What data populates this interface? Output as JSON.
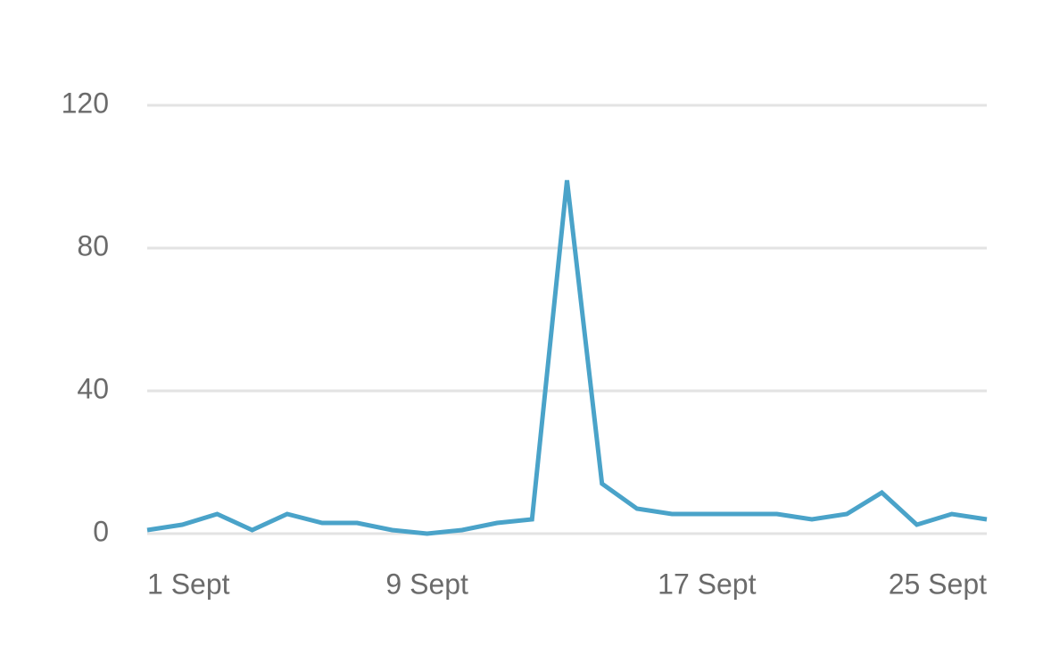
{
  "chart_data": {
    "type": "line",
    "categories": [
      "1 Sept",
      null,
      null,
      null,
      null,
      null,
      null,
      null,
      "9 Sept",
      null,
      null,
      null,
      null,
      null,
      null,
      null,
      "17 Sept",
      null,
      null,
      null,
      null,
      null,
      null,
      null,
      "25 Sept"
    ],
    "series": [
      {
        "color": "#4aa3c9",
        "values": [
          1,
          2.5,
          5.5,
          1,
          5.5,
          3,
          3,
          1,
          0,
          1,
          3,
          4,
          99,
          14,
          7,
          5.5,
          5.5,
          5.5,
          5.5,
          4,
          5.5,
          11.5,
          2.5,
          5.5,
          4
        ]
      }
    ],
    "ylim": [
      0,
      120
    ],
    "yticks": [
      0,
      40,
      80,
      120
    ],
    "grid": true
  }
}
